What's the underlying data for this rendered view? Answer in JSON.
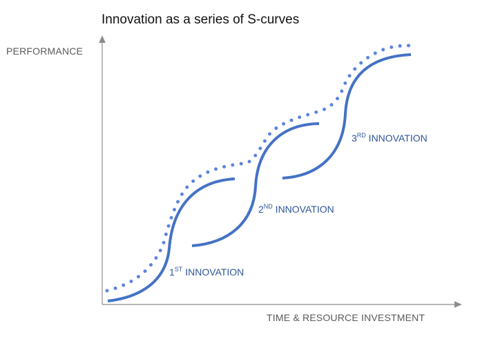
{
  "title": "Innovation as a series of S-curves",
  "axes": {
    "y_label": "PERFORMANCE",
    "x_label": "TIME & RESOURCE INVESTMENT"
  },
  "curves": [
    {
      "ordinal": "1",
      "suffix": "ST",
      "label": " INNOVATION"
    },
    {
      "ordinal": "2",
      "suffix": "ND",
      "label": " INNOVATION"
    },
    {
      "ordinal": "3",
      "suffix": "RD",
      "label": " INNOVATION"
    }
  ],
  "colors": {
    "curve": "#4472C4",
    "dotted_envelope": "#5B83E0",
    "axis": "#8C8C8C",
    "label_text": "#2F5597"
  }
}
